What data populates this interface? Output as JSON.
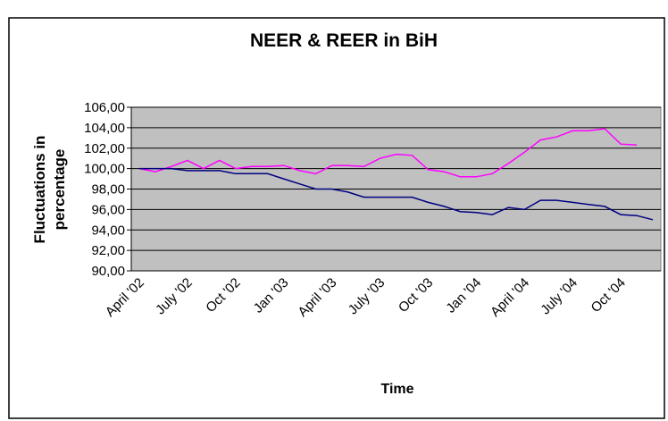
{
  "chart_data": {
    "type": "line",
    "title": "NEER & REER in BiH",
    "x_label": "Time",
    "y_label": [
      "Fluctuations in",
      "percentage"
    ],
    "categories": [
      "April '02",
      null,
      null,
      "July '02",
      null,
      null,
      "Oct '02",
      null,
      null,
      "Jan '03",
      null,
      null,
      "April '03",
      null,
      null,
      "July '03",
      null,
      null,
      "Oct '03",
      null,
      null,
      "Jan '04",
      null,
      null,
      "April '04",
      null,
      null,
      "July '04",
      null,
      null,
      "Oct '04",
      null,
      null
    ],
    "series": [
      {
        "color": "#ff00ff",
        "values": [
          100,
          99.7,
          100.2,
          100.8,
          100,
          100.8,
          100,
          100.2,
          100.2,
          100.3,
          99.8,
          99.5,
          100.3,
          100.3,
          100.2,
          101,
          101.4,
          101.3,
          99.9,
          99.7,
          99.2,
          99.2,
          99.5,
          100.5,
          101.6,
          102.8,
          103.1,
          103.7,
          103.7,
          103.9,
          102.4,
          102.3,
          null
        ]
      },
      {
        "color": "#000080",
        "values": [
          100,
          100,
          100,
          99.8,
          99.8,
          99.8,
          99.5,
          99.5,
          99.5,
          99,
          98.5,
          98,
          98,
          97.7,
          97.2,
          97.2,
          97.2,
          97.2,
          96.7,
          96.3,
          95.8,
          95.7,
          95.5,
          96.2,
          96,
          96.9,
          96.9,
          96.7,
          96.5,
          96.3,
          95.5,
          95.4,
          95
        ]
      }
    ],
    "ylim": [
      90,
      106
    ],
    "yticks": [
      {
        "value": 90,
        "label": "90,00"
      },
      {
        "value": 92,
        "label": "92,00"
      },
      {
        "value": 94,
        "label": "94,00"
      },
      {
        "value": 96,
        "label": "96,00"
      },
      {
        "value": 98,
        "label": "98,00"
      },
      {
        "value": 100,
        "label": "100,00"
      },
      {
        "value": 102,
        "label": "102,00"
      },
      {
        "value": 104,
        "label": "104,00"
      },
      {
        "value": 106,
        "label": "106,00"
      }
    ],
    "grid": true,
    "plot_background": "#c0c0c0"
  }
}
